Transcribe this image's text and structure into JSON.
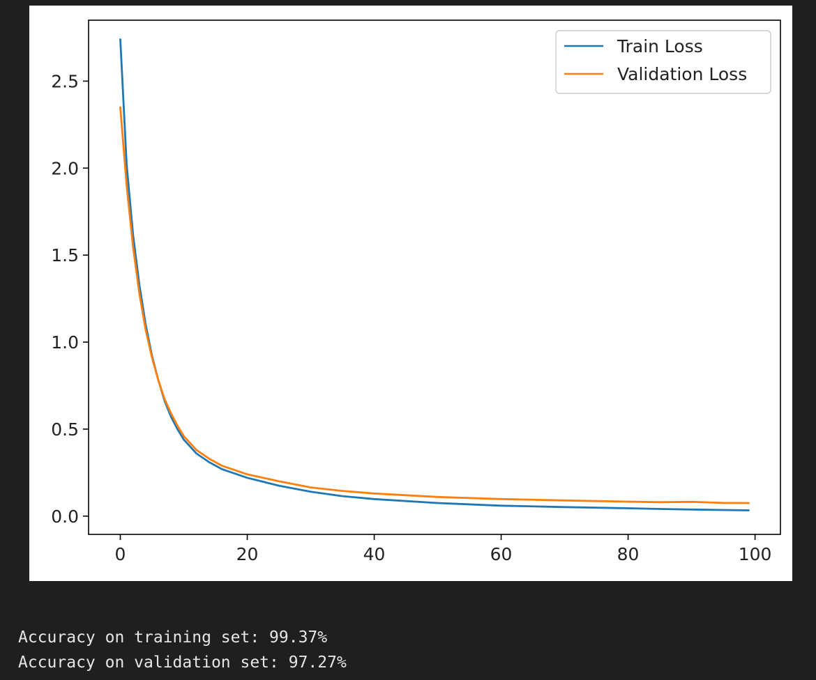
{
  "chart_data": {
    "type": "line",
    "title": "",
    "xlabel": "",
    "ylabel": "",
    "xlim": [
      -5,
      104
    ],
    "ylim": [
      -0.105,
      2.85
    ],
    "xticks": [
      0,
      20,
      40,
      60,
      80,
      100
    ],
    "yticks": [
      0.0,
      0.5,
      1.0,
      1.5,
      2.0,
      2.5
    ],
    "xtick_labels": [
      "0",
      "20",
      "40",
      "60",
      "80",
      "100"
    ],
    "ytick_labels": [
      "0.0",
      "0.5",
      "1.0",
      "1.5",
      "2.0",
      "2.5"
    ],
    "grid": false,
    "legend": "top-right",
    "x": [
      0,
      1,
      2,
      3,
      4,
      5,
      6,
      7,
      8,
      9,
      10,
      12,
      14,
      16,
      18,
      20,
      25,
      30,
      35,
      40,
      50,
      60,
      70,
      80,
      85,
      90,
      95,
      99
    ],
    "series": [
      {
        "name": "Train Loss",
        "color": "#1f77b4",
        "values": [
          2.74,
          2.02,
          1.62,
          1.33,
          1.1,
          0.92,
          0.78,
          0.66,
          0.57,
          0.5,
          0.44,
          0.36,
          0.31,
          0.27,
          0.245,
          0.22,
          0.175,
          0.14,
          0.115,
          0.098,
          0.075,
          0.06,
          0.052,
          0.045,
          0.041,
          0.038,
          0.035,
          0.033
        ]
      },
      {
        "name": "Validation Loss",
        "color": "#ff7f0e",
        "values": [
          2.35,
          1.9,
          1.55,
          1.28,
          1.07,
          0.91,
          0.78,
          0.67,
          0.59,
          0.52,
          0.46,
          0.38,
          0.33,
          0.29,
          0.265,
          0.24,
          0.2,
          0.165,
          0.145,
          0.13,
          0.11,
          0.098,
          0.09,
          0.083,
          0.08,
          0.082,
          0.076,
          0.075
        ]
      }
    ]
  },
  "output": {
    "line1": "Accuracy on training set: 99.37%",
    "line2": "Accuracy on validation set: 97.27%"
  }
}
